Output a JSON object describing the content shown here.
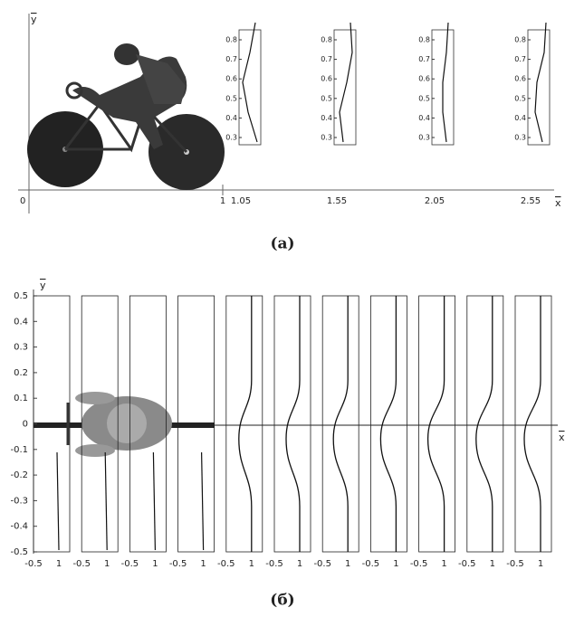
{
  "panel_a": {
    "caption": "(a)",
    "y_axis_label": "y",
    "x_axis_label": "x",
    "origin_label": "0",
    "x_labels": [
      "1",
      "1.05",
      "1.55",
      "2.05",
      "2.55"
    ],
    "profile_ticks": [
      "0.8",
      "0.7",
      "0.6",
      "0.5",
      "0.4",
      "0.3"
    ]
  },
  "panel_b": {
    "caption": "(б)",
    "y_axis_label": "y",
    "x_axis_label": "x",
    "y_ticks": [
      "0.5",
      "0.4",
      "0.3",
      "0.2",
      "0.1",
      "0",
      "-0.1",
      "-0.2",
      "-0.3",
      "-0.4",
      "-0.5"
    ],
    "profile_x_ticks": [
      "-0.5",
      "1"
    ]
  }
}
